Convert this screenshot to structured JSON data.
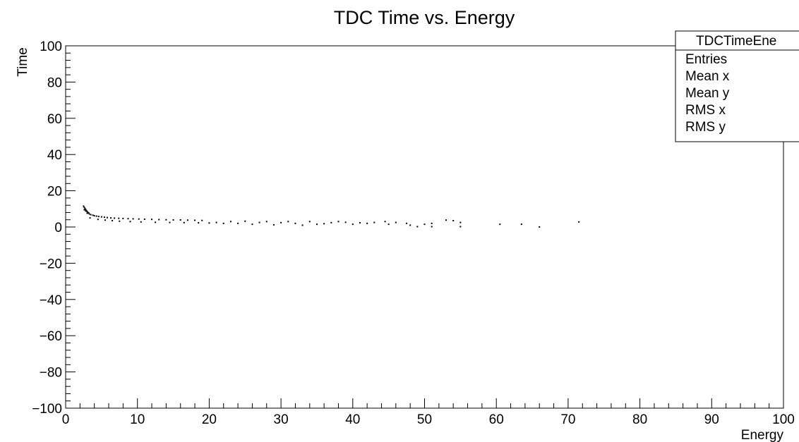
{
  "chart_data": {
    "type": "scatter",
    "title": "TDC Time vs. Energy",
    "xlabel": "Energy",
    "ylabel": "Time",
    "xlim": [
      0,
      100
    ],
    "ylim": [
      -100,
      100
    ],
    "x_ticks": [
      "0",
      "10",
      "20",
      "30",
      "40",
      "50",
      "60",
      "70",
      "80",
      "90",
      "100"
    ],
    "y_ticks": [
      "100",
      "80",
      "60",
      "40",
      "20",
      "0",
      "−20",
      "−40",
      "−60",
      "−80",
      "−100"
    ],
    "grid": false,
    "marker_color": "#000000",
    "stats_box": {
      "title": "TDCTimeEne",
      "placement": "top-right",
      "rows": [
        "Entries",
        "Mean x",
        "Mean y",
        "RMS x",
        "RMS y"
      ]
    },
    "series": [
      {
        "points": [
          [
            2.5,
            11.5
          ],
          [
            2.6,
            10.8
          ],
          [
            2.7,
            10.2
          ],
          [
            2.8,
            9.6
          ],
          [
            2.9,
            9.0
          ],
          [
            3.0,
            8.5
          ],
          [
            3.1,
            8.0
          ],
          [
            3.2,
            7.8
          ],
          [
            2.6,
            9.5
          ],
          [
            2.8,
            8.8
          ],
          [
            3.0,
            7.6
          ],
          [
            3.3,
            7.2
          ],
          [
            3.5,
            6.8
          ],
          [
            3.8,
            6.5
          ],
          [
            4.0,
            6.2
          ],
          [
            4.3,
            6.0
          ],
          [
            4.6,
            5.8
          ],
          [
            5.0,
            5.6
          ],
          [
            5.4,
            5.4
          ],
          [
            5.8,
            5.2
          ],
          [
            6.3,
            5.0
          ],
          [
            6.8,
            4.9
          ],
          [
            7.4,
            4.8
          ],
          [
            8.0,
            4.7
          ],
          [
            8.7,
            4.6
          ],
          [
            9.4,
            4.5
          ],
          [
            10.2,
            4.4
          ],
          [
            11.0,
            4.3
          ],
          [
            12.0,
            4.2
          ],
          [
            13.0,
            4.1
          ],
          [
            14.0,
            4.0
          ],
          [
            15.0,
            3.9
          ],
          [
            16.0,
            3.9
          ],
          [
            17.0,
            3.8
          ],
          [
            18.0,
            3.7
          ],
          [
            19.0,
            3.6
          ],
          [
            3.4,
            5.0
          ],
          [
            4.5,
            4.2
          ],
          [
            5.5,
            3.8
          ],
          [
            6.5,
            3.5
          ],
          [
            7.5,
            3.2
          ],
          [
            9.0,
            3.0
          ],
          [
            10.5,
            2.8
          ],
          [
            12.5,
            2.6
          ],
          [
            14.5,
            2.5
          ],
          [
            16.5,
            2.4
          ],
          [
            18.5,
            2.3
          ],
          [
            20.0,
            2.2
          ],
          [
            21.0,
            2.5
          ],
          [
            22.0,
            2.0
          ],
          [
            23.0,
            3.0
          ],
          [
            24.0,
            2.0
          ],
          [
            25.0,
            3.2
          ],
          [
            26.0,
            1.5
          ],
          [
            27.0,
            2.5
          ],
          [
            28.0,
            3.0
          ],
          [
            29.0,
            1.2
          ],
          [
            30.0,
            2.4
          ],
          [
            31.0,
            3.0
          ],
          [
            32.0,
            2.0
          ],
          [
            33.0,
            1.0
          ],
          [
            34.0,
            3.0
          ],
          [
            35.0,
            1.5
          ],
          [
            36.0,
            1.8
          ],
          [
            37.0,
            2.4
          ],
          [
            38.0,
            3.0
          ],
          [
            39.0,
            2.6
          ],
          [
            40.0,
            1.5
          ],
          [
            41.0,
            2.3
          ],
          [
            42.0,
            2.0
          ],
          [
            43.0,
            2.5
          ],
          [
            44.5,
            3.0
          ],
          [
            45.0,
            1.5
          ],
          [
            46.0,
            2.5
          ],
          [
            47.5,
            2.0
          ],
          [
            48.0,
            1.0
          ],
          [
            49.0,
            0.2
          ],
          [
            50.0,
            1.5
          ],
          [
            51.0,
            2.0
          ],
          [
            51.0,
            0.2
          ],
          [
            53.0,
            3.8
          ],
          [
            54.0,
            3.5
          ],
          [
            55.0,
            2.5
          ],
          [
            55.0,
            0.2
          ],
          [
            60.5,
            1.5
          ],
          [
            63.5,
            1.5
          ],
          [
            66.0,
            0.0
          ],
          [
            71.5,
            2.8
          ]
        ]
      }
    ]
  }
}
